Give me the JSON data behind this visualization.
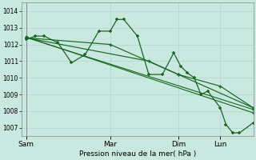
{
  "bg_color": "#c8e8e0",
  "grid_color": "#b0d4cc",
  "line_color": "#1a6620",
  "marker_color": "#1a6620",
  "xlabel": "Pression niveau de la mer( hPa )",
  "ylim": [
    1006.5,
    1014.5
  ],
  "yticks": [
    1007,
    1008,
    1009,
    1010,
    1011,
    1012,
    1013,
    1014
  ],
  "xtick_labels": [
    "Sam",
    "Mar",
    "Dim",
    "Lun"
  ],
  "xtick_pos": [
    0.0,
    0.37,
    0.67,
    0.855
  ],
  "xlim": [
    -0.02,
    1.0
  ],
  "series1_x": [
    0.0,
    0.04,
    0.08,
    0.14,
    0.2,
    0.26,
    0.32,
    0.37,
    0.4,
    0.43,
    0.49,
    0.54,
    0.6,
    0.65,
    0.68,
    0.71,
    0.74,
    0.77,
    0.8,
    0.855,
    0.88,
    0.91,
    0.94,
    1.0
  ],
  "series1_y": [
    1012.3,
    1012.5,
    1012.5,
    1012.1,
    1010.9,
    1011.4,
    1012.8,
    1012.8,
    1013.5,
    1013.5,
    1012.5,
    1010.2,
    1010.2,
    1011.5,
    1010.7,
    1010.3,
    1010.0,
    1009.0,
    1009.2,
    1008.2,
    1007.2,
    1006.7,
    1006.7,
    1007.3
  ],
  "series2_x": [
    0.0,
    0.37,
    0.67,
    0.855,
    1.0
  ],
  "series2_y": [
    1012.4,
    1012.0,
    1010.2,
    1009.5,
    1008.2
  ],
  "trend1_x": [
    0.0,
    1.0
  ],
  "trend1_y": [
    1012.45,
    1007.9
  ],
  "trend2_x": [
    0.0,
    1.0
  ],
  "trend2_y": [
    1012.42,
    1008.1
  ],
  "series4_x": [
    0.0,
    0.54,
    0.67,
    1.0
  ],
  "series4_y": [
    1012.4,
    1011.0,
    1010.2,
    1008.2
  ]
}
